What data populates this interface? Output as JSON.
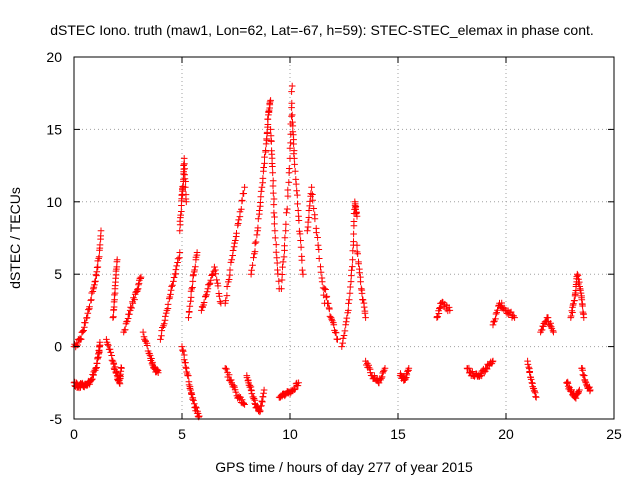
{
  "chart_data": {
    "type": "scatter",
    "title": "dSTEC Iono. truth (maw1, Lon=62, Lat=-67, h=59): STEC-STEC_elemax in phase cont.",
    "xlabel": "GPS time / hours of day 277 of year 2015",
    "ylabel": "dSTEC  / TECUs",
    "xlim": [
      0,
      25
    ],
    "ylim": [
      -5,
      20
    ],
    "xticks": [
      "0",
      "5",
      "10",
      "15",
      "20",
      "25"
    ],
    "yticks": [
      "-5",
      "0",
      "5",
      "10",
      "15",
      "20"
    ],
    "grid": true,
    "marker": "plus",
    "colors": {
      "series": "#ff0000",
      "grid": "#a0a0a0",
      "axis": "#000000"
    },
    "series": [
      {
        "segments": [
          {
            "x": [
              0.0,
              0.2,
              0.4,
              0.6,
              0.8,
              1.0,
              1.15,
              1.2
            ],
            "y": [
              -2.5,
              -2.8,
              -2.6,
              -2.7,
              -2.3,
              -1.5,
              -0.5,
              0.3
            ]
          },
          {
            "x": [
              0.0,
              0.3,
              0.6,
              0.9,
              1.1,
              1.25
            ],
            "y": [
              0.0,
              0.5,
              2.0,
              4.0,
              5.5,
              8.0
            ]
          },
          {
            "x": [
              1.5,
              1.8,
              2.0,
              2.1,
              2.2
            ],
            "y": [
              0.5,
              -1.0,
              -2.0,
              -2.5,
              -1.5
            ]
          },
          {
            "x": [
              1.8,
              1.9,
              2.0
            ],
            "y": [
              2.0,
              4.0,
              6.0
            ]
          },
          {
            "x": [
              2.3,
              2.6,
              2.9,
              3.1
            ],
            "y": [
              1.0,
              2.5,
              3.8,
              4.8
            ]
          },
          {
            "x": [
              3.2,
              3.5,
              3.7,
              3.9
            ],
            "y": [
              1.0,
              -0.5,
              -1.5,
              -1.8
            ]
          },
          {
            "x": [
              4.0,
              4.3,
              4.6,
              4.9
            ],
            "y": [
              0.5,
              2.5,
              4.5,
              6.5
            ]
          },
          {
            "x": [
              4.9,
              5.0,
              5.05,
              5.1,
              5.2
            ],
            "y": [
              8.0,
              10.5,
              11.0,
              13.0,
              10.0
            ]
          },
          {
            "x": [
              5.0,
              5.2,
              5.4,
              5.6,
              5.8
            ],
            "y": [
              0.0,
              -1.5,
              -3.0,
              -4.2,
              -4.8
            ]
          },
          {
            "x": [
              5.3,
              5.5,
              5.7
            ],
            "y": [
              2.0,
              4.5,
              6.5
            ]
          },
          {
            "x": [
              5.9,
              6.2,
              6.5,
              6.8
            ],
            "y": [
              2.5,
              4.0,
              5.5,
              3.0
            ]
          },
          {
            "x": [
              7.0,
              7.3,
              7.6,
              7.9
            ],
            "y": [
              -1.5,
              -2.5,
              -3.5,
              -4.0
            ]
          },
          {
            "x": [
              7.0,
              7.3,
              7.6,
              7.9
            ],
            "y": [
              3.0,
              6.0,
              8.5,
              11.0
            ]
          },
          {
            "x": [
              8.0,
              8.2,
              8.4,
              8.6,
              8.8
            ],
            "y": [
              -2.0,
              -3.0,
              -4.0,
              -4.5,
              -3.0
            ]
          },
          {
            "x": [
              8.2,
              8.5,
              8.7,
              8.9,
              9.0,
              9.1
            ],
            "y": [
              5.0,
              8.0,
              11.0,
              14.0,
              16.0,
              17.0
            ]
          },
          {
            "x": [
              9.1,
              9.2,
              9.3,
              9.5
            ],
            "y": [
              15.0,
              12.0,
              8.0,
              4.0
            ]
          },
          {
            "x": [
              9.6,
              9.8,
              10.0,
              10.1
            ],
            "y": [
              4.0,
              8.0,
              13.0,
              18.0
            ]
          },
          {
            "x": [
              10.1,
              10.2,
              10.4,
              10.6
            ],
            "y": [
              16.0,
              13.0,
              9.0,
              5.0
            ]
          },
          {
            "x": [
              9.5,
              9.8,
              10.1,
              10.4
            ],
            "y": [
              -3.5,
              -3.3,
              -3.0,
              -2.5
            ]
          },
          {
            "x": [
              10.8,
              11.0,
              11.3,
              11.6
            ],
            "y": [
              8.0,
              11.0,
              7.0,
              3.0
            ]
          },
          {
            "x": [
              11.6,
              11.9,
              12.2
            ],
            "y": [
              4.0,
              2.0,
              0.5
            ]
          },
          {
            "x": [
              12.4,
              12.7,
              12.9,
              13.0,
              13.1
            ],
            "y": [
              0.0,
              2.5,
              6.0,
              10.0,
              9.0
            ]
          },
          {
            "x": [
              13.1,
              13.3,
              13.5
            ],
            "y": [
              7.0,
              4.0,
              2.0
            ]
          },
          {
            "x": [
              13.5,
              13.8,
              14.1,
              14.4
            ],
            "y": [
              -1.0,
              -2.0,
              -2.5,
              -1.5
            ]
          },
          {
            "x": [
              15.1,
              15.3,
              15.5
            ],
            "y": [
              -2.0,
              -2.3,
              -1.5
            ]
          },
          {
            "x": [
              16.8,
              17.0,
              17.4
            ],
            "y": [
              2.0,
              3.0,
              2.5
            ]
          },
          {
            "x": [
              18.2,
              18.5,
              18.8,
              19.1,
              19.4
            ],
            "y": [
              -1.5,
              -2.0,
              -2.0,
              -1.5,
              -1.0
            ]
          },
          {
            "x": [
              19.4,
              19.7,
              20.0,
              20.4
            ],
            "y": [
              1.5,
              3.0,
              2.5,
              2.0
            ]
          },
          {
            "x": [
              21.0,
              21.2,
              21.4
            ],
            "y": [
              -1.0,
              -2.5,
              -3.5
            ]
          },
          {
            "x": [
              21.6,
              21.9,
              22.2
            ],
            "y": [
              1.0,
              2.0,
              1.0
            ]
          },
          {
            "x": [
              22.8,
              23.0,
              23.2,
              23.4
            ],
            "y": [
              -2.5,
              -3.0,
              -3.5,
              -3.0
            ]
          },
          {
            "x": [
              23.0,
              23.2,
              23.3,
              23.5,
              23.6
            ],
            "y": [
              2.0,
              3.5,
              5.0,
              3.5,
              2.0
            ]
          },
          {
            "x": [
              23.5,
              23.7,
              23.9
            ],
            "y": [
              -1.5,
              -2.5,
              -3.0
            ]
          }
        ]
      }
    ]
  }
}
